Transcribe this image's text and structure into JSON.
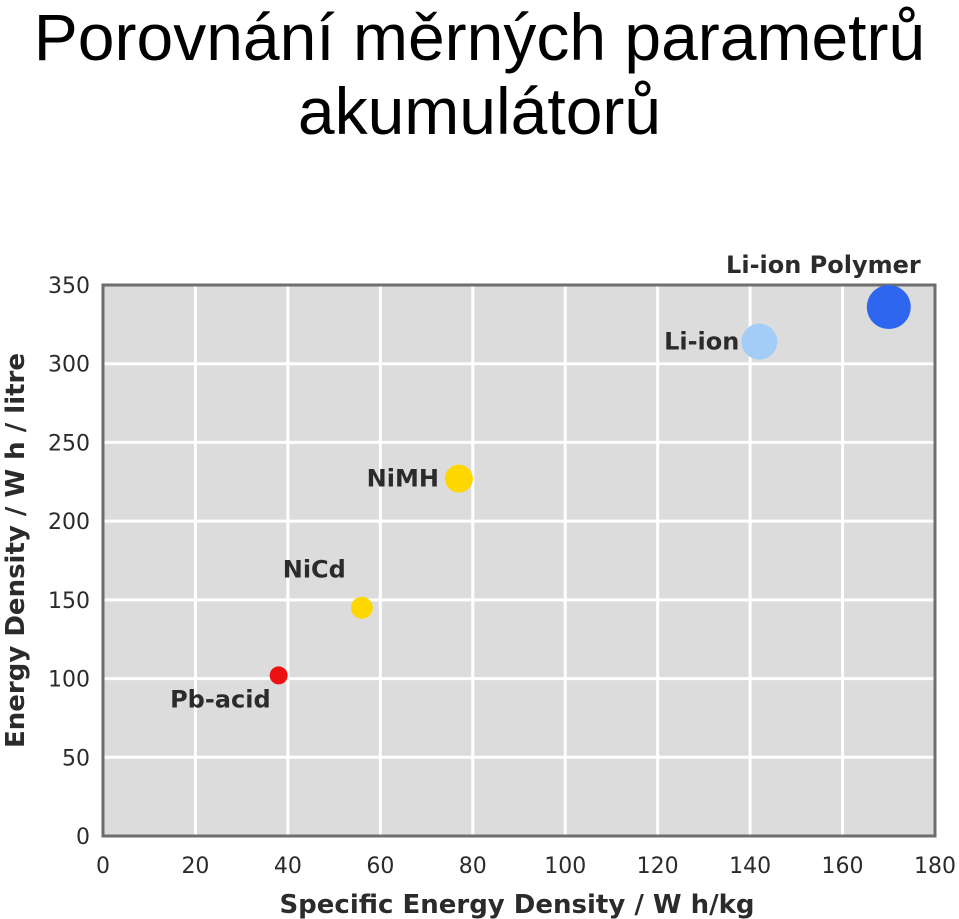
{
  "title": {
    "line1": "Porovnání měrných parametrů",
    "line2": "akumulátorů"
  },
  "chart_data": {
    "type": "scatter",
    "xlabel": "Specific Energy Density / W h/kg",
    "ylabel": "Energy Density / W h / litre",
    "xlim": [
      0,
      180
    ],
    "ylim": [
      0,
      350
    ],
    "x_ticks": [
      0,
      20,
      40,
      60,
      80,
      100,
      120,
      140,
      160,
      180
    ],
    "y_ticks": [
      0,
      50,
      100,
      150,
      200,
      250,
      300,
      350
    ],
    "grid": true,
    "points": [
      {
        "label": "Pb-acid",
        "x": 38,
        "y": 102,
        "color": "#ee1111",
        "size": 9,
        "label_pos": "bottom-left"
      },
      {
        "label": "NiCd",
        "x": 56,
        "y": 145,
        "color": "#ffd700",
        "size": 11,
        "label_pos": "top-left"
      },
      {
        "label": "NiMH",
        "x": 77,
        "y": 227,
        "color": "#ffd700",
        "size": 14,
        "label_pos": "left"
      },
      {
        "label": "Li-ion",
        "x": 142,
        "y": 314,
        "color": "#a3cdf7",
        "size": 18,
        "label_pos": "left"
      },
      {
        "label": "Li-ion Polymer",
        "x": 170,
        "y": 336,
        "color": "#2f66f0",
        "size": 22,
        "label_pos": "top-left"
      }
    ]
  }
}
